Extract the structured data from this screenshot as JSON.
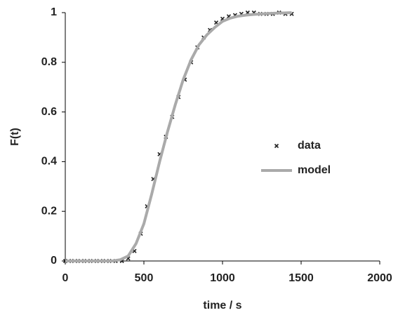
{
  "chart_data": {
    "type": "scatter",
    "x_label": "time / s",
    "y_label": "F(t)",
    "xlim": [
      0,
      2000
    ],
    "xticks": [
      0,
      500,
      1000,
      1500,
      2000
    ],
    "ylim": [
      0,
      1
    ],
    "yticks": [
      0,
      0.2,
      0.4,
      0.6,
      0.8,
      1
    ],
    "grid": false,
    "legend": "right",
    "series": [
      {
        "name": "data",
        "color": "#222222",
        "kind": "points",
        "x": [
          0,
          40,
          80,
          120,
          160,
          200,
          240,
          280,
          320,
          360,
          400,
          440,
          480,
          520,
          560,
          600,
          640,
          680,
          720,
          760,
          800,
          840,
          880,
          920,
          960,
          1000,
          1040,
          1080,
          1120,
          1160,
          1200,
          1240,
          1280,
          1320,
          1360,
          1400,
          1440
        ],
        "values": [
          0,
          0,
          0,
          0,
          0,
          0,
          0,
          0,
          0,
          0,
          0.01,
          0.04,
          0.11,
          0.22,
          0.33,
          0.43,
          0.5,
          0.58,
          0.66,
          0.73,
          0.8,
          0.86,
          0.9,
          0.93,
          0.96,
          0.975,
          0.985,
          0.99,
          0.995,
          1,
          1,
          0.995,
          0.995,
          0.995,
          1,
          0.995,
          0.995
        ]
      },
      {
        "name": "model",
        "color": "#aaaaaa",
        "kind": "line",
        "x": [
          0,
          100,
          200,
          300,
          350,
          400,
          450,
          500,
          550,
          600,
          650,
          700,
          750,
          800,
          850,
          900,
          950,
          1000,
          1050,
          1100,
          1150,
          1200,
          1300,
          1400,
          1440
        ],
        "values": [
          0,
          0,
          0,
          0,
          0.005,
          0.02,
          0.07,
          0.15,
          0.27,
          0.4,
          0.52,
          0.63,
          0.73,
          0.81,
          0.87,
          0.91,
          0.94,
          0.965,
          0.978,
          0.986,
          0.99,
          0.993,
          0.997,
          0.999,
          1
        ]
      }
    ]
  }
}
